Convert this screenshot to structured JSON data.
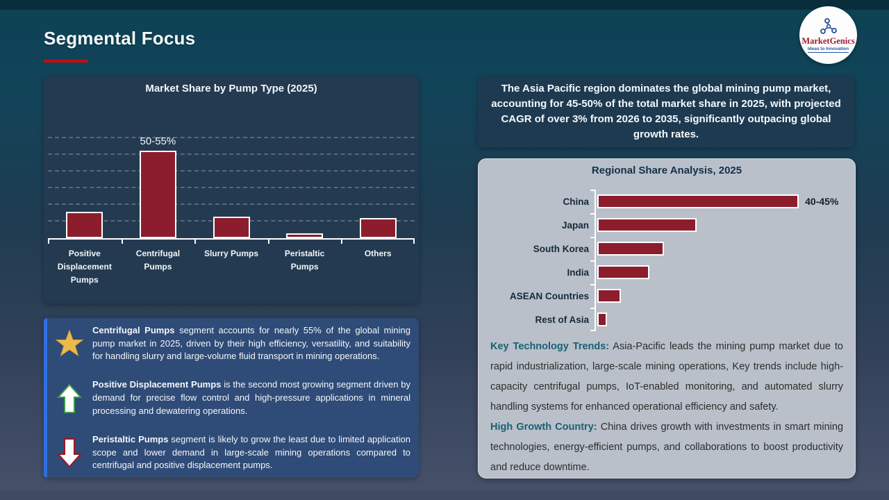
{
  "slide": {
    "title": "Segmental Focus",
    "accent_color": "#c50d12",
    "background_top": "#0d4154",
    "background_bottom": "#47526a"
  },
  "logo": {
    "brand": "MarketGenics",
    "tagline": "Ideas to Innovation",
    "icon": "molecule-network-icon",
    "brand_color": "#a01b2e",
    "tagline_color": "#2156a5"
  },
  "chart_data": [
    {
      "type": "bar",
      "orientation": "vertical",
      "title": "Market Share by Pump Type (2025)",
      "categories": [
        "Positive Displacement Pumps",
        "Centrifugal Pumps",
        "Slurry Pumps",
        "Peristaltic Pumps",
        "Others"
      ],
      "values": [
        16,
        52.5,
        13,
        3,
        12
      ],
      "data_labels": [
        "",
        "50-55%",
        "",
        "",
        ""
      ],
      "bar_color": "#8c1d2c",
      "bar_border_color": "#ffffff",
      "ylim": [
        0,
        86
      ],
      "grid": true,
      "gridline_values": [
        10,
        20,
        30,
        40,
        50,
        60
      ],
      "xlabel": "",
      "ylabel": "",
      "legend": "none"
    },
    {
      "type": "bar",
      "orientation": "horizontal",
      "title": "Regional Share Analysis, 2025",
      "categories": [
        "China",
        "Japan",
        "South Korea",
        "India",
        "ASEAN Countries",
        "Rest of Asia"
      ],
      "values": [
        42.5,
        21,
        14,
        11,
        5,
        2
      ],
      "data_labels": [
        "40-45%",
        "",
        "",
        "",
        "",
        ""
      ],
      "bar_color": "#8c1d2c",
      "bar_border_color": "#ffffff",
      "xlim": [
        0,
        52
      ],
      "grid": false,
      "legend": "none"
    }
  ],
  "apac_box": {
    "text": "The Asia Pacific region dominates the global mining pump market, accounting for 45-50% of the total market share in 2025, with projected CAGR of over 3% from 2026 to 2035, significantly outpacing global growth rates."
  },
  "regional_text": {
    "paragraphs": [
      {
        "lead": "Key Technology Trends:",
        "body": "Asia-Pacific leads the mining pump market due to rapid industrialization, large-scale mining operations, Key trends include high-capacity centrifugal pumps, IoT-enabled monitoring, and automated slurry handling systems for enhanced operational efficiency and safety."
      },
      {
        "lead": "High Growth Country:",
        "body": "China drives growth with investments in smart mining technologies, energy-efficient pumps, and collaborations to boost productivity and reduce downtime."
      }
    ]
  },
  "insights": [
    {
      "icon": "star-icon",
      "lead": "Centrifugal Pumps",
      "body": "segment accounts for nearly 55% of the global mining pump market in 2025, driven by their high efficiency, versatility, and suitability for handling slurry and large-volume fluid transport in mining operations."
    },
    {
      "icon": "up-arrow-icon",
      "lead": "Positive Displacement Pumps",
      "body": "is the second most growing segment driven by demand for precise flow control and high-pressure applications in mineral processing and dewatering operations."
    },
    {
      "icon": "down-arrow-icon",
      "lead": "Peristaltic Pumps",
      "body": "segment is likely to grow the least due to limited application scope and lower demand in large-scale mining operations compared to centrifugal and positive displacement pumps."
    }
  ]
}
